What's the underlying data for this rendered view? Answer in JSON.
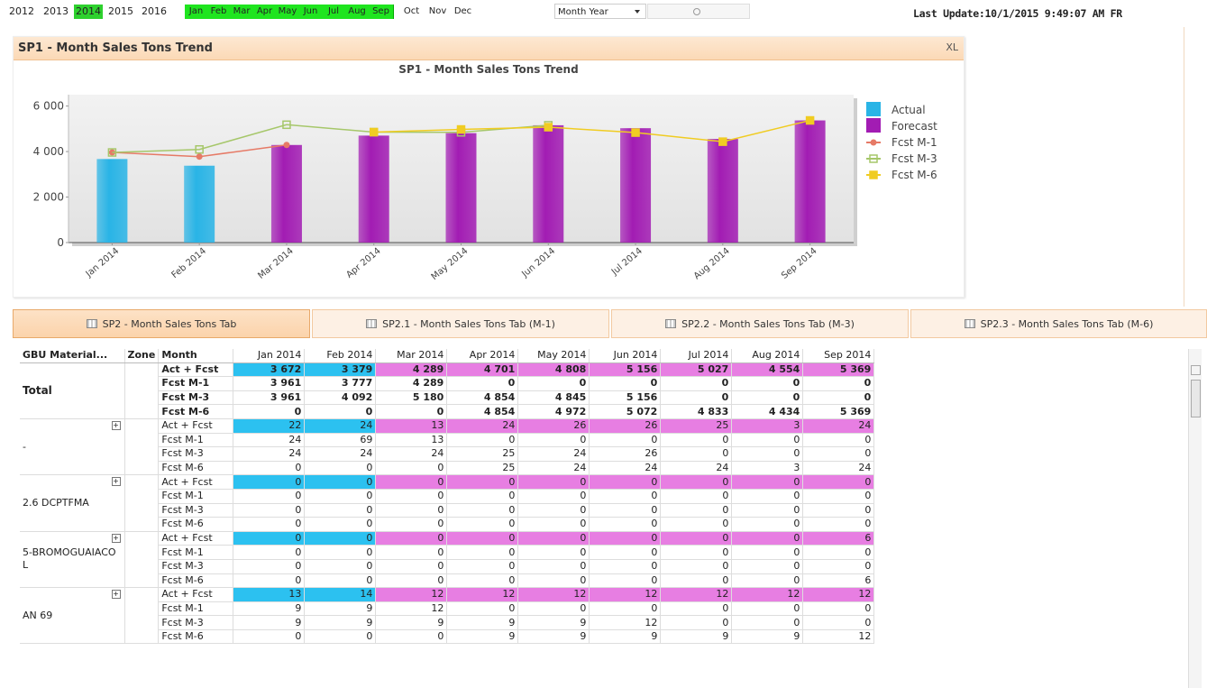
{
  "toolbar": {
    "years": [
      {
        "label": "2012",
        "selected": false
      },
      {
        "label": "2013",
        "selected": false
      },
      {
        "label": "2014",
        "selected": true
      },
      {
        "label": "2015",
        "selected": false
      },
      {
        "label": "2016",
        "selected": false
      }
    ],
    "months": [
      {
        "label": "Jan",
        "selected": true
      },
      {
        "label": "Feb",
        "selected": true
      },
      {
        "label": "Mar",
        "selected": true
      },
      {
        "label": "Apr",
        "selected": true
      },
      {
        "label": "May",
        "selected": true
      },
      {
        "label": "Jun",
        "selected": true
      },
      {
        "label": "Jul",
        "selected": true
      },
      {
        "label": "Aug",
        "selected": true
      },
      {
        "label": "Sep",
        "selected": true
      },
      {
        "label": "Oct",
        "selected": false
      },
      {
        "label": "Nov",
        "selected": false
      },
      {
        "label": "Dec",
        "selected": false
      }
    ],
    "dropdown": "Month Year",
    "last_update": "Last Update:10/1/2015 9:49:07 AM FR"
  },
  "panel": {
    "title": "SP1 - Month Sales Tons Trend",
    "export": "XL"
  },
  "chart_data": {
    "type": "combo",
    "title": "SP1 - Month Sales Tons Trend",
    "categories": [
      "Jan 2014",
      "Feb 2014",
      "Mar 2014",
      "Apr 2014",
      "May 2014",
      "Jun 2014",
      "Jul 2014",
      "Aug 2014",
      "Sep 2014"
    ],
    "series": [
      {
        "name": "Actual",
        "type": "bar",
        "color": "#29b4e6",
        "values": [
          3672,
          3379,
          null,
          null,
          null,
          null,
          null,
          null,
          null
        ]
      },
      {
        "name": "Forecast",
        "type": "bar",
        "color": "#a21cb3",
        "values": [
          null,
          null,
          4289,
          4701,
          4808,
          5156,
          5027,
          4554,
          5369
        ]
      },
      {
        "name": "Fcst M-1",
        "type": "line",
        "color": "#e67a66",
        "values": [
          3961,
          3777,
          4289,
          null,
          null,
          null,
          null,
          null,
          null
        ]
      },
      {
        "name": "Fcst M-3",
        "type": "line",
        "color": "#a6c76a",
        "values": [
          3961,
          4092,
          5180,
          4854,
          4845,
          5156,
          null,
          null,
          null
        ]
      },
      {
        "name": "Fcst M-6",
        "type": "line",
        "color": "#f0cc22",
        "values": [
          null,
          null,
          null,
          4854,
          4972,
          5072,
          4833,
          4434,
          5369
        ]
      }
    ],
    "ylim": [
      0,
      6500
    ],
    "yticks": [
      0,
      {
        "value": 2000,
        "label": "2 000"
      },
      {
        "value": 4000,
        "label": "4 000"
      },
      {
        "value": 6000,
        "label": "6 000"
      }
    ],
    "legend": "right"
  },
  "tabs": [
    "SP2 - Month Sales Tons Tab",
    "SP2.1 - Month Sales Tons Tab (M-1)",
    "SP2.2 - Month Sales Tons Tab (M-3)",
    "SP2.3 - Month Sales Tons Tab (M-6)"
  ],
  "table": {
    "headers": [
      "GBU Material...",
      "Zone",
      "Month",
      "Jan 2014",
      "Feb 2014",
      "Mar 2014",
      "Apr 2014",
      "May 2014",
      "Jun 2014",
      "Jul 2014",
      "Aug 2014",
      "Sep 2014"
    ],
    "groups": [
      {
        "name": "Total",
        "rows": [
          {
            "measure": "Act + Fcst",
            "values": [
              "3 672",
              "3 379",
              "4 289",
              "4 701",
              "4 808",
              "5 156",
              "5 027",
              "4 554",
              "5 369"
            ]
          },
          {
            "measure": "Fcst M-1",
            "values": [
              "3 961",
              "3 777",
              "4 289",
              "0",
              "0",
              "0",
              "0",
              "0",
              "0"
            ]
          },
          {
            "measure": "Fcst M-3",
            "values": [
              "3 961",
              "4 092",
              "5 180",
              "4 854",
              "4 845",
              "5 156",
              "0",
              "0",
              "0"
            ]
          },
          {
            "measure": "Fcst M-6",
            "values": [
              "0",
              "0",
              "0",
              "4 854",
              "4 972",
              "5 072",
              "4 833",
              "4 434",
              "5 369"
            ]
          }
        ]
      },
      {
        "name": "-",
        "rows": [
          {
            "measure": "Act + Fcst",
            "values": [
              "22",
              "24",
              "13",
              "24",
              "26",
              "26",
              "25",
              "3",
              "24"
            ]
          },
          {
            "measure": "Fcst M-1",
            "values": [
              "24",
              "69",
              "13",
              "0",
              "0",
              "0",
              "0",
              "0",
              "0"
            ]
          },
          {
            "measure": "Fcst M-3",
            "values": [
              "24",
              "24",
              "24",
              "25",
              "24",
              "26",
              "0",
              "0",
              "0"
            ]
          },
          {
            "measure": "Fcst M-6",
            "values": [
              "0",
              "0",
              "0",
              "25",
              "24",
              "24",
              "24",
              "3",
              "24"
            ]
          }
        ]
      },
      {
        "name": "2.6 DCPTFMA",
        "rows": [
          {
            "measure": "Act + Fcst",
            "values": [
              "0",
              "0",
              "0",
              "0",
              "0",
              "0",
              "0",
              "0",
              "0"
            ]
          },
          {
            "measure": "Fcst M-1",
            "values": [
              "0",
              "0",
              "0",
              "0",
              "0",
              "0",
              "0",
              "0",
              "0"
            ]
          },
          {
            "measure": "Fcst M-3",
            "values": [
              "0",
              "0",
              "0",
              "0",
              "0",
              "0",
              "0",
              "0",
              "0"
            ]
          },
          {
            "measure": "Fcst M-6",
            "values": [
              "0",
              "0",
              "0",
              "0",
              "0",
              "0",
              "0",
              "0",
              "0"
            ]
          }
        ]
      },
      {
        "name": "5-BROMOGUAIACOL",
        "rows": [
          {
            "measure": "Act + Fcst",
            "values": [
              "0",
              "0",
              "0",
              "0",
              "0",
              "0",
              "0",
              "0",
              "6"
            ]
          },
          {
            "measure": "Fcst M-1",
            "values": [
              "0",
              "0",
              "0",
              "0",
              "0",
              "0",
              "0",
              "0",
              "0"
            ]
          },
          {
            "measure": "Fcst M-3",
            "values": [
              "0",
              "0",
              "0",
              "0",
              "0",
              "0",
              "0",
              "0",
              "0"
            ]
          },
          {
            "measure": "Fcst M-6",
            "values": [
              "0",
              "0",
              "0",
              "0",
              "0",
              "0",
              "0",
              "0",
              "6"
            ]
          }
        ]
      },
      {
        "name": "AN 69",
        "rows": [
          {
            "measure": "Act + Fcst",
            "values": [
              "13",
              "14",
              "12",
              "12",
              "12",
              "12",
              "12",
              "12",
              "12"
            ]
          },
          {
            "measure": "Fcst M-1",
            "values": [
              "9",
              "9",
              "12",
              "0",
              "0",
              "0",
              "0",
              "0",
              "0"
            ]
          },
          {
            "measure": "Fcst M-3",
            "values": [
              "9",
              "9",
              "9",
              "9",
              "9",
              "12",
              "0",
              "0",
              "0"
            ]
          },
          {
            "measure": "Fcst M-6",
            "values": [
              "0",
              "0",
              "0",
              "9",
              "9",
              "9",
              "9",
              "9",
              "12"
            ]
          }
        ]
      }
    ]
  }
}
